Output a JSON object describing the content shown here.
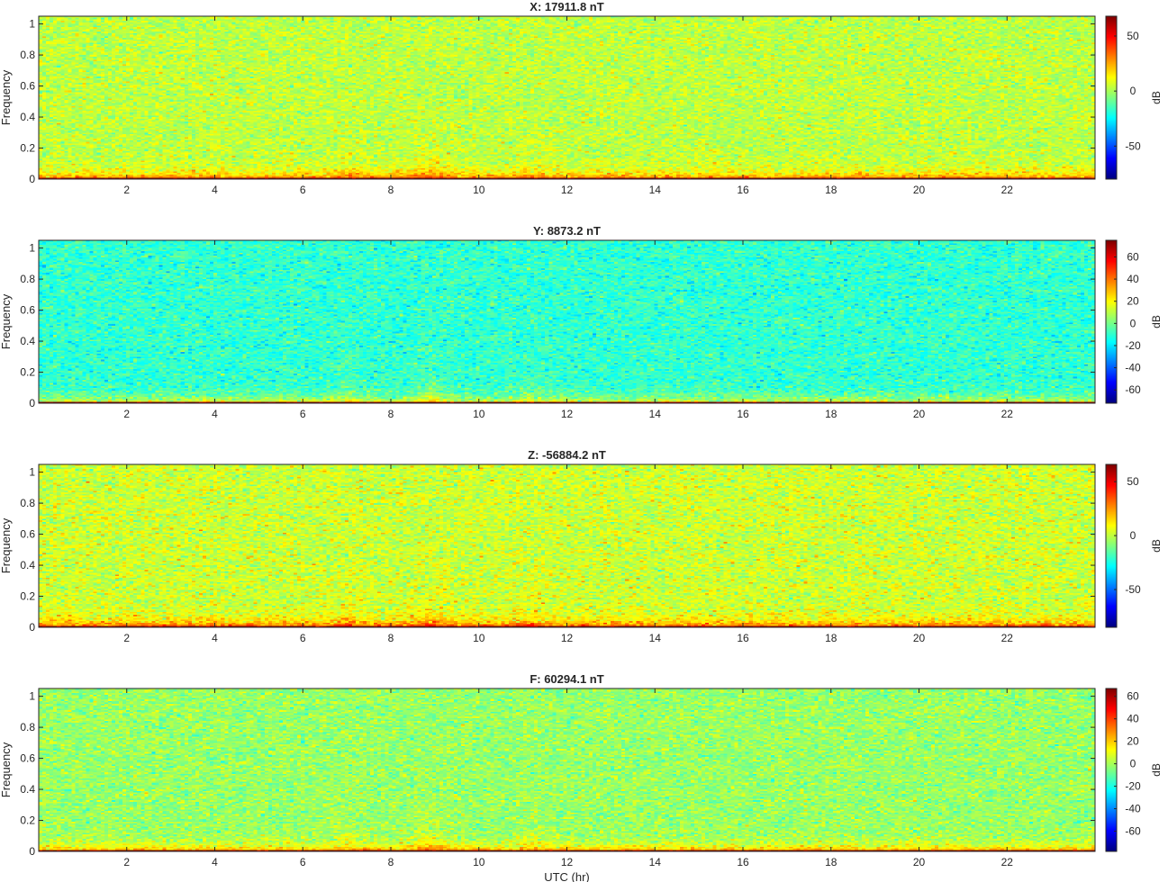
{
  "figure": {
    "xlabel": "UTC (hr)",
    "colormap": "jet"
  },
  "chart_data": [
    {
      "type": "heatmap",
      "title": "X: 17911.8 nT",
      "xlabel": "",
      "ylabel": "Frequency",
      "x_range": [
        0,
        24
      ],
      "ylim": [
        0,
        1.05
      ],
      "x_ticks": [
        2,
        4,
        6,
        8,
        10,
        12,
        14,
        16,
        18,
        20,
        22
      ],
      "y_ticks": [
        0,
        0.2,
        0.4,
        0.6,
        0.8,
        1
      ],
      "colorbar": {
        "label": "dB",
        "clim": [
          -80,
          68
        ],
        "ticks": [
          50,
          0,
          -50
        ]
      },
      "levels": {
        "floor_db": 3,
        "low_band_db": 38,
        "dc_band_db": 68,
        "spread_db": 6
      },
      "grid": false
    },
    {
      "type": "heatmap",
      "title": "Y: 8873.2 nT",
      "xlabel": "",
      "ylabel": "Frequency",
      "x_range": [
        0,
        24
      ],
      "ylim": [
        0,
        1.05
      ],
      "x_ticks": [
        2,
        4,
        6,
        8,
        10,
        12,
        14,
        16,
        18,
        20,
        22
      ],
      "y_ticks": [
        0,
        0.2,
        0.4,
        0.6,
        0.8,
        1
      ],
      "colorbar": {
        "label": "dB",
        "clim": [
          -72,
          75
        ],
        "ticks": [
          60,
          40,
          20,
          0,
          -20,
          -40,
          -60
        ]
      },
      "levels": {
        "floor_db": -10,
        "low_band_db": 22,
        "dc_band_db": 72,
        "spread_db": 6
      },
      "grid": false
    },
    {
      "type": "heatmap",
      "title": "Z: -56884.2 nT",
      "xlabel": "",
      "ylabel": "Frequency",
      "x_range": [
        0,
        24
      ],
      "ylim": [
        0,
        1.05
      ],
      "x_ticks": [
        2,
        4,
        6,
        8,
        10,
        12,
        14,
        16,
        18,
        20,
        22
      ],
      "y_ticks": [
        0,
        0.2,
        0.4,
        0.6,
        0.8,
        1
      ],
      "colorbar": {
        "label": "dB",
        "clim": [
          -85,
          66
        ],
        "ticks": [
          50,
          0,
          -50
        ]
      },
      "levels": {
        "floor_db": 2,
        "low_band_db": 40,
        "dc_band_db": 64,
        "spread_db": 7
      },
      "grid": false
    },
    {
      "type": "heatmap",
      "title": "F: 60294.1 nT",
      "xlabel": "UTC (hr)",
      "ylabel": "Frequency",
      "x_range": [
        0,
        24
      ],
      "ylim": [
        0,
        1.05
      ],
      "x_ticks": [
        2,
        4,
        6,
        8,
        10,
        12,
        14,
        16,
        18,
        20,
        22
      ],
      "y_ticks": [
        0,
        0.2,
        0.4,
        0.6,
        0.8,
        1
      ],
      "colorbar": {
        "label": "dB",
        "clim": [
          -78,
          67
        ],
        "ticks": [
          60,
          40,
          20,
          0,
          -20,
          -40,
          -60
        ]
      },
      "levels": {
        "floor_db": -2,
        "low_band_db": 30,
        "dc_band_db": 65,
        "spread_db": 6
      },
      "grid": false
    }
  ]
}
